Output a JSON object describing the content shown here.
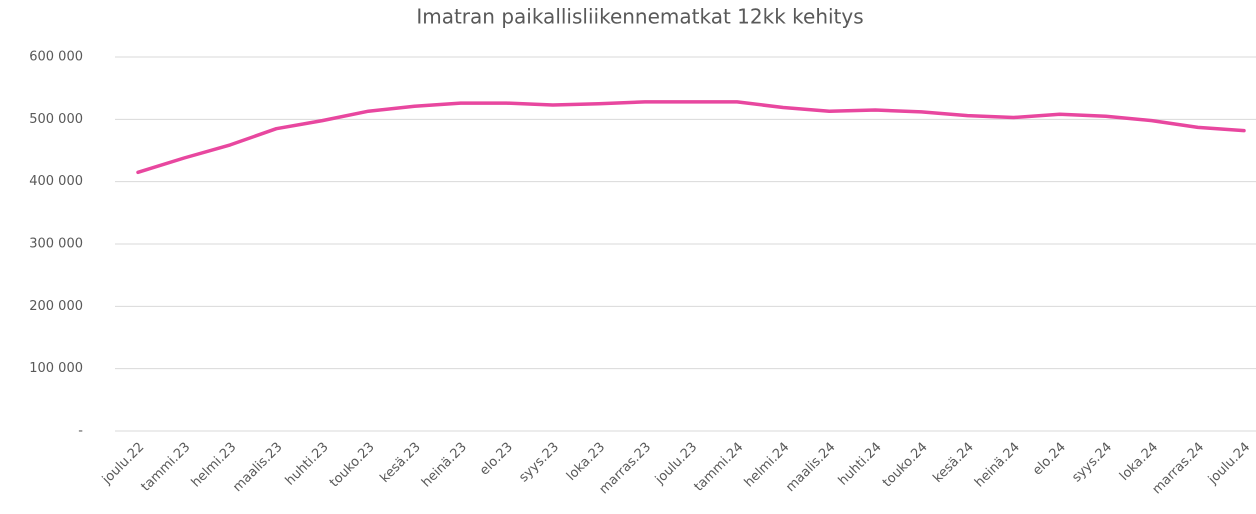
{
  "chart_data": {
    "type": "line",
    "title": "Imatran paikallisliikennematkat 12kk kehitys",
    "categories": [
      "joulu.22",
      "tammi.23",
      "helmi.23",
      "maalis.23",
      "huhti.23",
      "touko.23",
      "kesä.23",
      "heinä.23",
      "elo.23",
      "syys.23",
      "loka.23",
      "marras.23",
      "joulu.23",
      "tammi.24",
      "helmi.24",
      "maalis.24",
      "huhti.24",
      "touko.24",
      "kesä.24",
      "heinä.24",
      "elo.24",
      "syys.24",
      "loka.24",
      "marras.24",
      "joulu.24"
    ],
    "values": [
      415000,
      438000,
      459000,
      485000,
      498000,
      513000,
      521000,
      526000,
      526000,
      523000,
      525000,
      528000,
      528000,
      528000,
      519000,
      513000,
      515000,
      512000,
      506000,
      503000,
      508000,
      505000,
      498000,
      487000,
      482000
    ],
    "color": "#e8479f",
    "ylim": [
      0,
      600000
    ],
    "yticks": [
      {
        "value": 0,
        "label": "-"
      },
      {
        "value": 100000,
        "label": "100 000"
      },
      {
        "value": 200000,
        "label": "200 000"
      },
      {
        "value": 300000,
        "label": "300 000"
      },
      {
        "value": 400000,
        "label": "400 000"
      },
      {
        "value": 500000,
        "label": "500 000"
      },
      {
        "value": 600000,
        "label": "600 000"
      }
    ],
    "grid": true
  }
}
